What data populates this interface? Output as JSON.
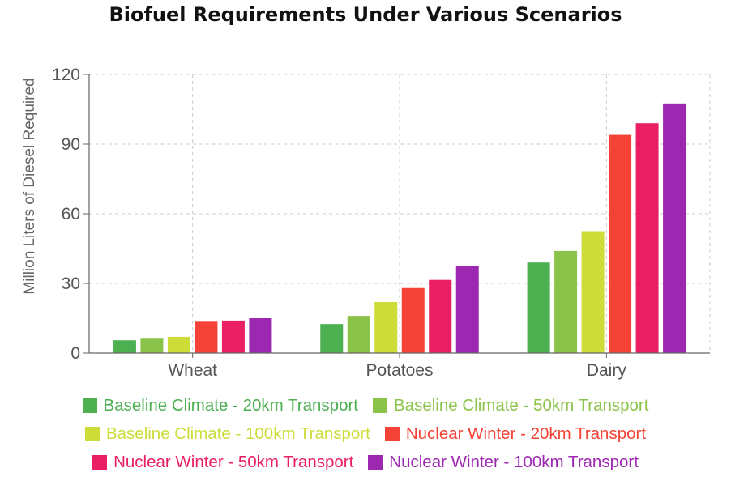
{
  "chart_data": {
    "type": "bar",
    "title": "Biofuel Requirements Under Various Scenarios",
    "xlabel": "",
    "ylabel": "Million Liters of Diesel Required",
    "ylim": [
      0,
      120
    ],
    "yticks": [
      0,
      30,
      60,
      90,
      120
    ],
    "grid": true,
    "legend_position": "bottom",
    "categories": [
      "Wheat",
      "Potatoes",
      "Dairy"
    ],
    "series": [
      {
        "name": "Baseline Climate - 20km Transport",
        "color": "#4caf50",
        "values": [
          5.5,
          12.5,
          39
        ]
      },
      {
        "name": "Baseline Climate - 50km Transport",
        "color": "#8bc34a",
        "values": [
          6.2,
          16,
          44
        ]
      },
      {
        "name": "Baseline Climate - 100km Transport",
        "color": "#cddc39",
        "values": [
          7,
          22,
          52.5
        ]
      },
      {
        "name": "Nuclear Winter - 20km Transport",
        "color": "#f44336",
        "values": [
          13.5,
          28,
          94
        ]
      },
      {
        "name": "Nuclear Winter - 50km Transport",
        "color": "#e91e63",
        "values": [
          14,
          31.5,
          99
        ]
      },
      {
        "name": "Nuclear Winter - 100km Transport",
        "color": "#9c27b0",
        "values": [
          15,
          37.5,
          107.5
        ]
      }
    ]
  }
}
